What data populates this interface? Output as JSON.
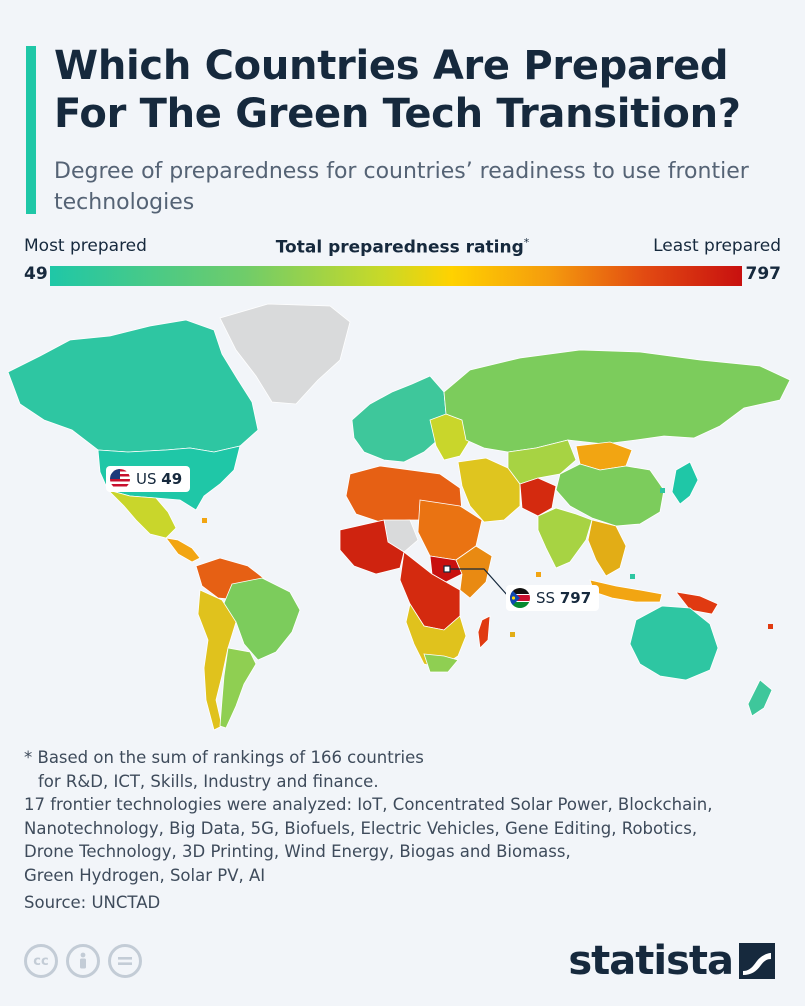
{
  "header": {
    "title": "Which Countries Are Prepared For The Green Tech Transition?",
    "subtitle": "Degree of preparedness for countries’ readiness to use frontier technologies"
  },
  "scale": {
    "left_label": "Most prepared",
    "center_label": "Total preparedness rating",
    "center_mark": "*",
    "right_label": "Least prepared",
    "min_value": "49",
    "max_value": "797",
    "colors": [
      "#1fc7a7",
      "#6fcc6a",
      "#c8d928",
      "#ffd200",
      "#f59c0d",
      "#e24a12",
      "#c8100f"
    ]
  },
  "map": {
    "callouts": [
      {
        "code": "US",
        "value": "49",
        "flag": "us-flag-icon"
      },
      {
        "code": "SS",
        "value": "797",
        "flag": "south-sudan-flag-icon"
      }
    ],
    "no_data_color": "#d9dadb"
  },
  "footnote": {
    "line1": "* Based on the sum of rankings of 166 countries",
    "line2": "for R&D, ICT, Skills, Industry and finance.",
    "line3": "17 frontier technologies were analyzed: IoT, Concentrated Solar Power, Blockchain,",
    "line4": "Nanotechnology, Big Data, 5G, Biofuels, Electric Vehicles, Gene Editing, Robotics,",
    "line5": "Drone Technology, 3D Printing, Wind Energy, Biogas and Biomass,",
    "line6": "Green Hydrogen, Solar PV, AI",
    "source": "Source: UNCTAD"
  },
  "brand": {
    "logo_text": "statista",
    "license_icons": [
      "cc-icon",
      "attribution-icon",
      "no-derivatives-icon"
    ]
  }
}
